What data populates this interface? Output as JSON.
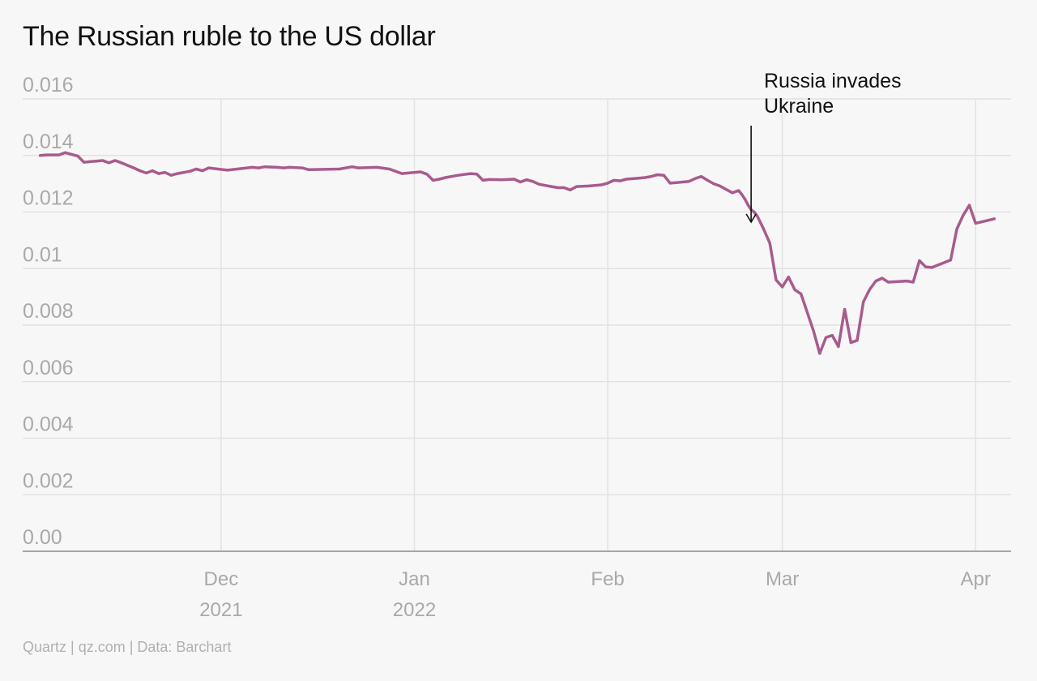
{
  "title": "The Russian ruble to the US dollar",
  "footer": "Quartz | qz.com | Data: Barchart",
  "colors": {
    "line": "#a85b8d",
    "grid": "#e2e2e2",
    "axis": "#a6a6a6",
    "tick_text": "#a9a9a9",
    "annotation": "#111111"
  },
  "chart_data": {
    "type": "line",
    "title": "The Russian ruble to the US dollar",
    "xlabel": "",
    "ylabel": "",
    "ylim": [
      0,
      0.016
    ],
    "xlim": [
      "2021-11-01",
      "2022-04-05"
    ],
    "grid": true,
    "y_ticks": [
      {
        "value": 0,
        "label": "0.00"
      },
      {
        "value": 0.002,
        "label": "0.002"
      },
      {
        "value": 0.004,
        "label": "0.004"
      },
      {
        "value": 0.006,
        "label": "0.006"
      },
      {
        "value": 0.008,
        "label": "0.008"
      },
      {
        "value": 0.01,
        "label": "0.01"
      },
      {
        "value": 0.012,
        "label": "0.012"
      },
      {
        "value": 0.014,
        "label": "0.014"
      },
      {
        "value": 0.016,
        "label": "0.016"
      }
    ],
    "x_ticks": [
      {
        "date": "2021-12-01",
        "line1": "Dec",
        "line2": "2021"
      },
      {
        "date": "2022-01-01",
        "line1": "Jan",
        "line2": "2022"
      },
      {
        "date": "2022-02-01",
        "line1": "Feb",
        "line2": ""
      },
      {
        "date": "2022-03-01",
        "line1": "Mar",
        "line2": ""
      },
      {
        "date": "2022-04-01",
        "line1": "Apr",
        "line2": ""
      }
    ],
    "annotations": [
      {
        "date": "2022-02-24",
        "line1": "Russia invades",
        "line2": "Ukraine"
      }
    ],
    "series": [
      {
        "points": [
          [
            "2021-11-02",
            0.014
          ],
          [
            "2021-11-03",
            0.01402
          ],
          [
            "2021-11-04",
            0.01402
          ],
          [
            "2021-11-05",
            0.01402
          ],
          [
            "2021-11-06",
            0.0141
          ],
          [
            "2021-11-07",
            0.01404
          ],
          [
            "2021-11-08",
            0.01398
          ],
          [
            "2021-11-09",
            0.01376
          ],
          [
            "2021-11-10",
            0.01378
          ],
          [
            "2021-11-11",
            0.0138
          ],
          [
            "2021-11-12",
            0.01382
          ],
          [
            "2021-11-13",
            0.01374
          ],
          [
            "2021-11-14",
            0.01382
          ],
          [
            "2021-11-15",
            0.01374
          ],
          [
            "2021-11-16",
            0.01365
          ],
          [
            "2021-11-17",
            0.01356
          ],
          [
            "2021-11-18",
            0.01346
          ],
          [
            "2021-11-19",
            0.01338
          ],
          [
            "2021-11-20",
            0.01346
          ],
          [
            "2021-11-21",
            0.01336
          ],
          [
            "2021-11-22",
            0.0134
          ],
          [
            "2021-11-23",
            0.0133
          ],
          [
            "2021-11-24",
            0.01336
          ],
          [
            "2021-11-25",
            0.0134
          ],
          [
            "2021-11-26",
            0.01344
          ],
          [
            "2021-11-27",
            0.01352
          ],
          [
            "2021-11-28",
            0.01346
          ],
          [
            "2021-11-29",
            0.01356
          ],
          [
            "2021-12-02",
            0.01348
          ],
          [
            "2021-12-06",
            0.01358
          ],
          [
            "2021-12-07",
            0.01356
          ],
          [
            "2021-12-08",
            0.0136
          ],
          [
            "2021-12-10",
            0.01358
          ],
          [
            "2021-12-11",
            0.01356
          ],
          [
            "2021-12-12",
            0.01358
          ],
          [
            "2021-12-14",
            0.01356
          ],
          [
            "2021-12-15",
            0.0135
          ],
          [
            "2021-12-20",
            0.01352
          ],
          [
            "2021-12-22",
            0.0136
          ],
          [
            "2021-12-23",
            0.01356
          ],
          [
            "2021-12-26",
            0.01358
          ],
          [
            "2021-12-28",
            0.01352
          ],
          [
            "2021-12-29",
            0.01344
          ],
          [
            "2021-12-30",
            0.01336
          ],
          [
            "2022-01-02",
            0.01342
          ],
          [
            "2022-01-03",
            0.01334
          ],
          [
            "2022-01-04",
            0.01312
          ],
          [
            "2022-01-05",
            0.01316
          ],
          [
            "2022-01-06",
            0.01322
          ],
          [
            "2022-01-08",
            0.0133
          ],
          [
            "2022-01-10",
            0.01336
          ],
          [
            "2022-01-11",
            0.01334
          ],
          [
            "2022-01-12",
            0.01312
          ],
          [
            "2022-01-13",
            0.01315
          ],
          [
            "2022-01-15",
            0.01314
          ],
          [
            "2022-01-17",
            0.01316
          ],
          [
            "2022-01-18",
            0.01306
          ],
          [
            "2022-01-19",
            0.01314
          ],
          [
            "2022-01-20",
            0.01308
          ],
          [
            "2022-01-21",
            0.01298
          ],
          [
            "2022-01-23",
            0.0129
          ],
          [
            "2022-01-24",
            0.01286
          ],
          [
            "2022-01-25",
            0.01286
          ],
          [
            "2022-01-26",
            0.01278
          ],
          [
            "2022-01-27",
            0.0129
          ],
          [
            "2022-01-29",
            0.01292
          ],
          [
            "2022-01-31",
            0.01296
          ],
          [
            "2022-02-01",
            0.01302
          ],
          [
            "2022-02-02",
            0.01312
          ],
          [
            "2022-02-03",
            0.0131
          ],
          [
            "2022-02-04",
            0.01316
          ],
          [
            "2022-02-06",
            0.0132
          ],
          [
            "2022-02-07",
            0.01322
          ],
          [
            "2022-02-08",
            0.01326
          ],
          [
            "2022-02-09",
            0.01332
          ],
          [
            "2022-02-10",
            0.0133
          ],
          [
            "2022-02-11",
            0.01302
          ],
          [
            "2022-02-12",
            0.01304
          ],
          [
            "2022-02-14",
            0.01308
          ],
          [
            "2022-02-15",
            0.01318
          ],
          [
            "2022-02-16",
            0.01326
          ],
          [
            "2022-02-17",
            0.01312
          ],
          [
            "2022-02-18",
            0.013
          ],
          [
            "2022-02-19",
            0.01292
          ],
          [
            "2022-02-21",
            0.01268
          ],
          [
            "2022-02-22",
            0.01276
          ],
          [
            "2022-02-22T12:00",
            0.01262
          ],
          [
            "2022-02-23",
            0.01246
          ],
          [
            "2022-02-23T12:00",
            0.01225
          ],
          [
            "2022-02-24",
            0.01208
          ],
          [
            "2022-02-24T12:00",
            0.012
          ],
          [
            "2022-02-25",
            0.01185
          ],
          [
            "2022-02-26",
            0.0114
          ],
          [
            "2022-02-27",
            0.0109
          ],
          [
            "2022-02-28",
            0.0096
          ],
          [
            "2022-03-01",
            0.00935
          ],
          [
            "2022-03-02",
            0.0097
          ],
          [
            "2022-03-03",
            0.00925
          ],
          [
            "2022-03-04",
            0.0091
          ],
          [
            "2022-03-06",
            0.0078
          ],
          [
            "2022-03-07",
            0.007
          ],
          [
            "2022-03-08",
            0.00756
          ],
          [
            "2022-03-09",
            0.00764
          ],
          [
            "2022-03-10",
            0.00724
          ],
          [
            "2022-03-11",
            0.00856
          ],
          [
            "2022-03-12",
            0.00738
          ],
          [
            "2022-03-13",
            0.00746
          ],
          [
            "2022-03-14",
            0.00882
          ],
          [
            "2022-03-15",
            0.00926
          ],
          [
            "2022-03-16",
            0.00956
          ],
          [
            "2022-03-17",
            0.00966
          ],
          [
            "2022-03-18",
            0.00952
          ],
          [
            "2022-03-21",
            0.00956
          ],
          [
            "2022-03-22",
            0.00952
          ],
          [
            "2022-03-23",
            0.01028
          ],
          [
            "2022-03-24",
            0.01006
          ],
          [
            "2022-03-25",
            0.01004
          ],
          [
            "2022-03-28",
            0.0103
          ],
          [
            "2022-03-29",
            0.0114
          ],
          [
            "2022-03-30",
            0.01188
          ],
          [
            "2022-03-31",
            0.01224
          ],
          [
            "2022-04-01",
            0.0116
          ],
          [
            "2022-04-04",
            0.01176
          ]
        ]
      }
    ]
  }
}
